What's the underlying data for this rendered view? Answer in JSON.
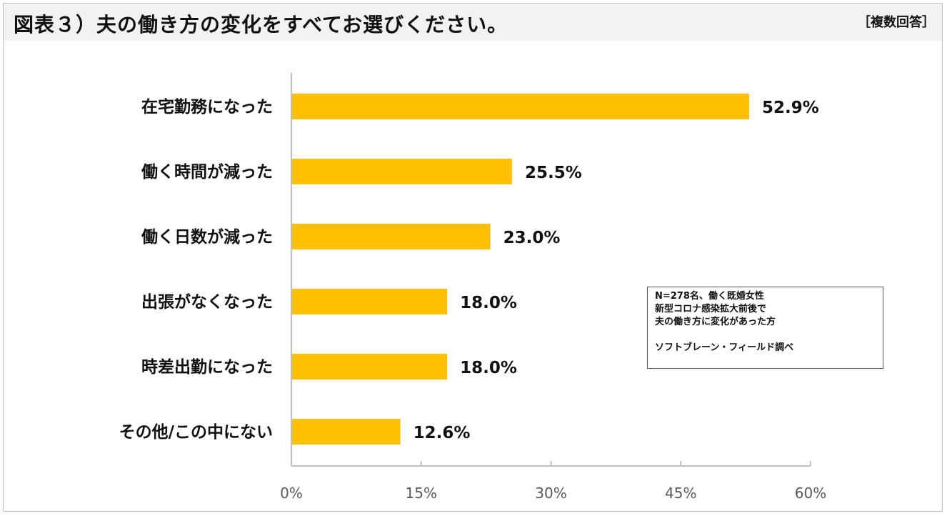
{
  "header": {
    "title": "図表３）夫の働き方の変化をすべてお選びください。",
    "note": "［複数回答］"
  },
  "infobox": {
    "line1": "N=278名、働く既婚女性",
    "line2": "新型コロナ感染拡大前後で",
    "line3": "夫の働き方に変化があった方",
    "line4": "",
    "line5": "ソフトブレーン・フィールド調べ"
  },
  "colors": {
    "bar": "#FFC000",
    "axis": "#bfbfbf",
    "text": "#111111",
    "tick_text": "#595959"
  },
  "chart_data": {
    "type": "bar",
    "orientation": "horizontal",
    "categories": [
      "在宅勤務になった",
      "働く時間が減った",
      "働く日数が減った",
      "出張がなくなった",
      "時差出勤になった",
      "その他/この中にない"
    ],
    "values": [
      52.9,
      25.5,
      23.0,
      18.0,
      18.0,
      12.6
    ],
    "data_labels": [
      "52.9%",
      "25.5%",
      "23.0%",
      "18.0%",
      "18.0%",
      "12.6%"
    ],
    "xlim": [
      0,
      60
    ],
    "xticks": [
      0,
      15,
      30,
      45,
      60
    ],
    "xtick_labels": [
      "0%",
      "15%",
      "30%",
      "45%",
      "60%"
    ],
    "grid": false,
    "legend": "none"
  }
}
